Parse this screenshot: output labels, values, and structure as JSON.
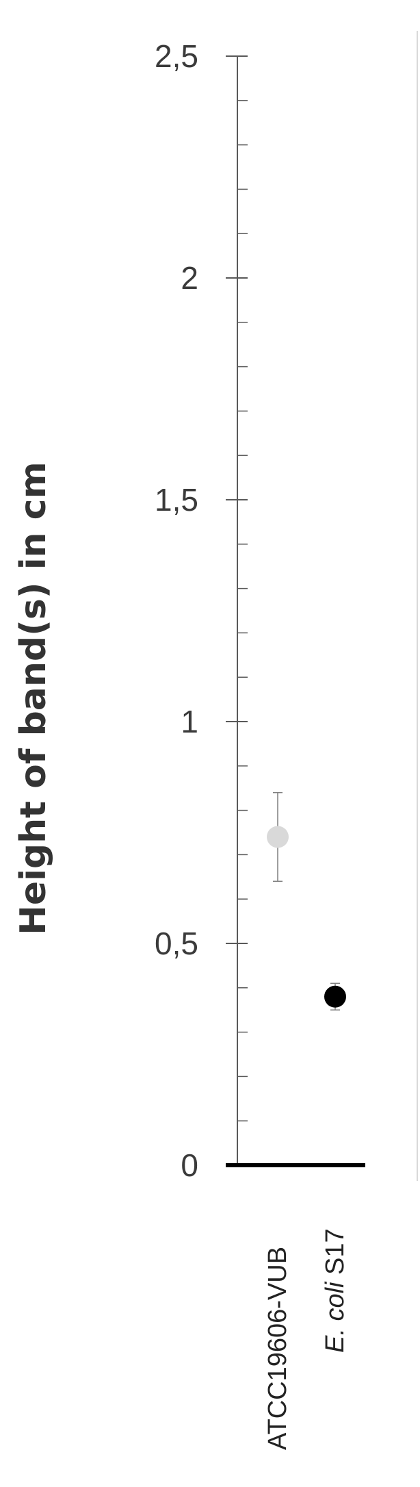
{
  "chart_data": {
    "type": "scatter",
    "ylabel": "Height of band(s) in cm",
    "ylim": [
      0,
      2.5
    ],
    "ytick_labels": [
      "0",
      "0,5",
      "1",
      "1,5",
      "2",
      "2,5"
    ],
    "y_ticks": [
      0,
      0.5,
      1,
      1.5,
      2,
      2.5
    ],
    "categories": [
      {
        "italic": "",
        "plain": "ATCC19606-VUB"
      },
      {
        "italic": "E. coli",
        "plain": " S17"
      }
    ],
    "points": [
      {
        "category_index": 0,
        "value": 0.74,
        "error_low": 0.64,
        "error_high": 0.84,
        "color": "#d9d9d9"
      },
      {
        "category_index": 1,
        "value": 0.38,
        "error_low": 0.35,
        "error_high": 0.41,
        "color": "#000000"
      }
    ]
  }
}
